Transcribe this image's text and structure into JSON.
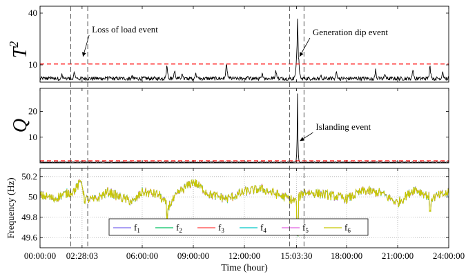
{
  "chart_data": [
    {
      "id": "t2",
      "type": "line",
      "ylabel": "T",
      "ylabel_sup": "2",
      "ylim": [
        0,
        44
      ],
      "yticks": [
        "10",
        "40"
      ],
      "threshold": 10.5,
      "colors": {
        "series": "#000000",
        "threshold": "#ff0000"
      },
      "spikes": [
        {
          "t": 0.55,
          "v": 4
        },
        {
          "t": 1.28,
          "v": 6
        },
        {
          "t": 2.02,
          "v": 8
        },
        {
          "t": 3.9,
          "v": 4
        },
        {
          "t": 5.4,
          "v": 5
        },
        {
          "t": 7.45,
          "v": 12
        },
        {
          "t": 7.9,
          "v": 9
        },
        {
          "t": 8.35,
          "v": 7
        },
        {
          "t": 9.15,
          "v": 7
        },
        {
          "t": 10.95,
          "v": 13
        },
        {
          "t": 12.2,
          "v": 5
        },
        {
          "t": 13.05,
          "v": 7
        },
        {
          "t": 13.85,
          "v": 9
        },
        {
          "t": 15.0,
          "v": 5
        },
        {
          "t": 15.12,
          "v": 41
        },
        {
          "t": 16.5,
          "v": 5
        },
        {
          "t": 17.4,
          "v": 8
        },
        {
          "t": 19.7,
          "v": 9
        },
        {
          "t": 20.25,
          "v": 7
        },
        {
          "t": 21.9,
          "v": 10
        },
        {
          "t": 22.9,
          "v": 12
        },
        {
          "t": 23.65,
          "v": 8
        }
      ],
      "annotations": [
        {
          "text": "Loss of load event",
          "t": 2.48,
          "v": 14
        },
        {
          "text": "Generation dip event",
          "t": 15.2,
          "v": 14
        }
      ]
    },
    {
      "id": "q",
      "type": "line",
      "ylabel": "Q",
      "ylim": [
        0,
        29
      ],
      "yticks": [
        "10",
        "20"
      ],
      "threshold": 0.8,
      "colors": {
        "series": "#000000",
        "threshold": "#ff0000"
      },
      "spikes": [
        {
          "t": 15.12,
          "v": 27
        }
      ],
      "annotations": [
        {
          "text": "Islanding event",
          "t": 15.22,
          "v": 8
        }
      ]
    },
    {
      "id": "freq",
      "type": "line",
      "ylabel": "Frequency (Hz)",
      "xlabel": "Time (hour)",
      "ylim": [
        49.5,
        50.28
      ],
      "yticks": [
        "49.6",
        "49.8",
        "50",
        "50.2"
      ],
      "grid": true,
      "legend_position": "bottom-left",
      "series": [
        {
          "name": "f",
          "sub": "1",
          "color": "#7b68ee"
        },
        {
          "name": "f",
          "sub": "2",
          "color": "#00c060"
        },
        {
          "name": "f",
          "sub": "3",
          "color": "#ff4040"
        },
        {
          "name": "f",
          "sub": "4",
          "color": "#00c8c8"
        },
        {
          "name": "f",
          "sub": "5",
          "color": "#e060e0"
        },
        {
          "name": "f",
          "sub": "6",
          "color": "#c8c800"
        }
      ],
      "shape": [
        [
          0,
          50.02
        ],
        [
          0.8,
          49.98
        ],
        [
          1.5,
          50.03
        ],
        [
          2.0,
          50.06
        ],
        [
          2.45,
          50.16
        ],
        [
          2.6,
          49.98
        ],
        [
          3.2,
          49.97
        ],
        [
          4.0,
          50.05
        ],
        [
          4.8,
          49.99
        ],
        [
          5.5,
          49.95
        ],
        [
          6.0,
          50.05
        ],
        [
          7.0,
          50.02
        ],
        [
          7.5,
          49.9
        ],
        [
          8.2,
          50.05
        ],
        [
          9.0,
          50.15
        ],
        [
          10.0,
          50.02
        ],
        [
          11.0,
          49.98
        ],
        [
          12.0,
          50.05
        ],
        [
          13.0,
          50.08
        ],
        [
          14.0,
          50.02
        ],
        [
          15.0,
          49.96
        ],
        [
          15.5,
          50.05
        ],
        [
          16.5,
          50.03
        ],
        [
          17.5,
          50.0
        ],
        [
          18.0,
          49.98
        ],
        [
          19.0,
          50.06
        ],
        [
          20.0,
          50.04
        ],
        [
          21.0,
          49.94
        ],
        [
          22.0,
          50.08
        ],
        [
          23.0,
          49.99
        ],
        [
          24.0,
          50.04
        ]
      ],
      "dips": [
        {
          "t": 7.45,
          "v": 49.78
        },
        {
          "t": 15.12,
          "v": 49.62
        },
        {
          "t": 22.9,
          "v": 49.86
        }
      ]
    }
  ],
  "x_axis": {
    "xlabel": "Time (hour)",
    "xlim": [
      0,
      24
    ],
    "ticks": [
      {
        "t": 0,
        "label": "00:00:00"
      },
      {
        "t": 2.4675,
        "label": "02:28:03"
      },
      {
        "t": 6,
        "label": "06:00:00"
      },
      {
        "t": 9,
        "label": "09:00:00"
      },
      {
        "t": 12,
        "label": "12:00:00"
      },
      {
        "t": 15.0583,
        "label": "15:03:30"
      },
      {
        "t": 18,
        "label": "18:00:00"
      },
      {
        "t": 21,
        "label": "21:00:00"
      },
      {
        "t": 24,
        "label": "24:00:00"
      }
    ]
  },
  "event_lines": [
    1.8,
    2.8,
    14.65,
    15.5
  ]
}
